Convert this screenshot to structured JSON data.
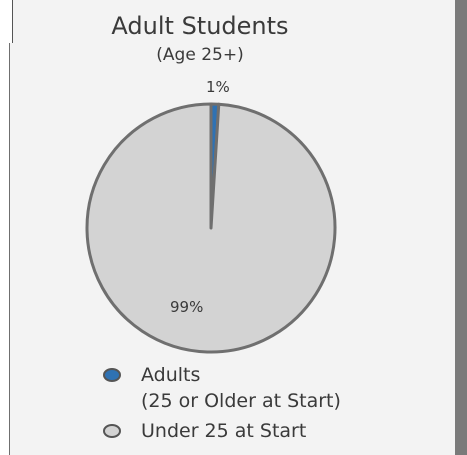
{
  "chart_data": {
    "type": "pie",
    "title": "Adult Students",
    "subtitle": "(Age 25+)",
    "slices": [
      {
        "name": "Adults",
        "name_line2": "(25 or Older at Start)",
        "value": 1,
        "label": "1%",
        "color": "#2f72b3"
      },
      {
        "name": "Under 25 at Start",
        "value": 99,
        "label": "99%",
        "color": "#d3d3d3"
      }
    ]
  },
  "colors": {
    "outline": "#6f6f6f",
    "right_bar": "#7a7a7a"
  }
}
